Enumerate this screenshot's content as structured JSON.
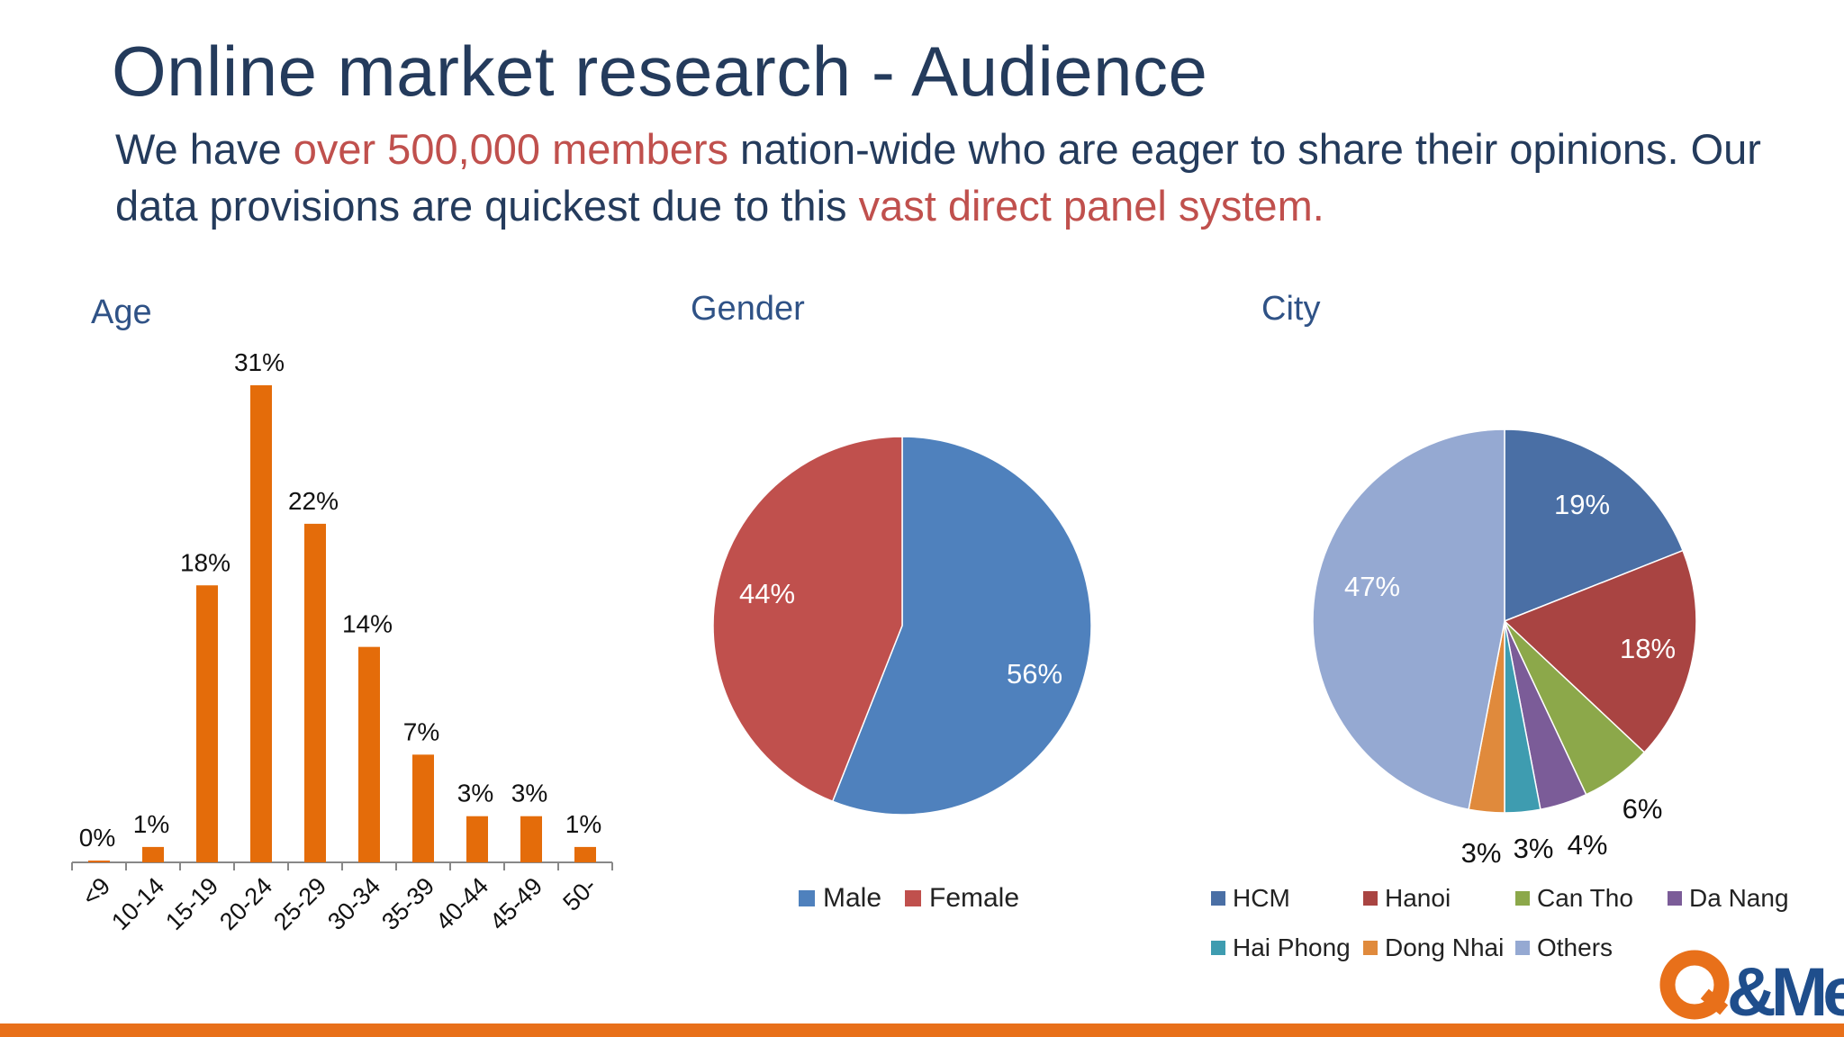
{
  "header": {
    "title": "Online market research - Audience",
    "subtitle_part1": "We have ",
    "subtitle_highlight1": "over 500,000 members",
    "subtitle_part2": " nation-wide who are eager to share their opinions. Our data provisions are quickest due to this ",
    "subtitle_highlight2": "vast direct panel system.",
    "highlight_color": "#c0504d"
  },
  "chart_data": [
    {
      "type": "bar",
      "title": "Age",
      "categories": [
        "<9",
        "10-14",
        "15-19",
        "20-24",
        "25-29",
        "30-34",
        "35-39",
        "40-44",
        "45-49",
        "50-"
      ],
      "values": [
        0,
        1,
        18,
        31,
        22,
        14,
        7,
        3,
        3,
        1
      ],
      "data_labels": [
        "0%",
        "1%",
        "18%",
        "31%",
        "22%",
        "14%",
        "7%",
        "3%",
        "3%",
        "1%"
      ],
      "ylim": [
        0,
        31
      ],
      "unit": "%",
      "color": "#e46c0a",
      "grid": false
    },
    {
      "type": "pie",
      "title": "Gender",
      "labels": [
        "Male",
        "Female"
      ],
      "values": [
        56,
        44
      ],
      "data_labels": [
        "56%",
        "44%"
      ],
      "colors": [
        "#4f81bd",
        "#c0504d"
      ],
      "legend": "bottom"
    },
    {
      "type": "pie",
      "title": "City",
      "labels": [
        "HCM",
        "Hanoi",
        "Can Tho",
        "Da Nang",
        "Hai Phong",
        "Dong Nhai",
        "Others"
      ],
      "values": [
        19,
        18,
        6,
        4,
        3,
        3,
        47
      ],
      "data_labels": [
        "19%",
        "18%",
        "6%",
        "4%",
        "3%",
        "3%",
        "47%"
      ],
      "colors": [
        "#4a6fa5",
        "#a94442",
        "#8ca84a",
        "#7b5c98",
        "#3e9cb0",
        "#e08a3c",
        "#95a9d2"
      ],
      "legend": "bottom"
    }
  ],
  "footer": {
    "logo_text": "Q&Me",
    "bar_color": "#e8701a"
  }
}
